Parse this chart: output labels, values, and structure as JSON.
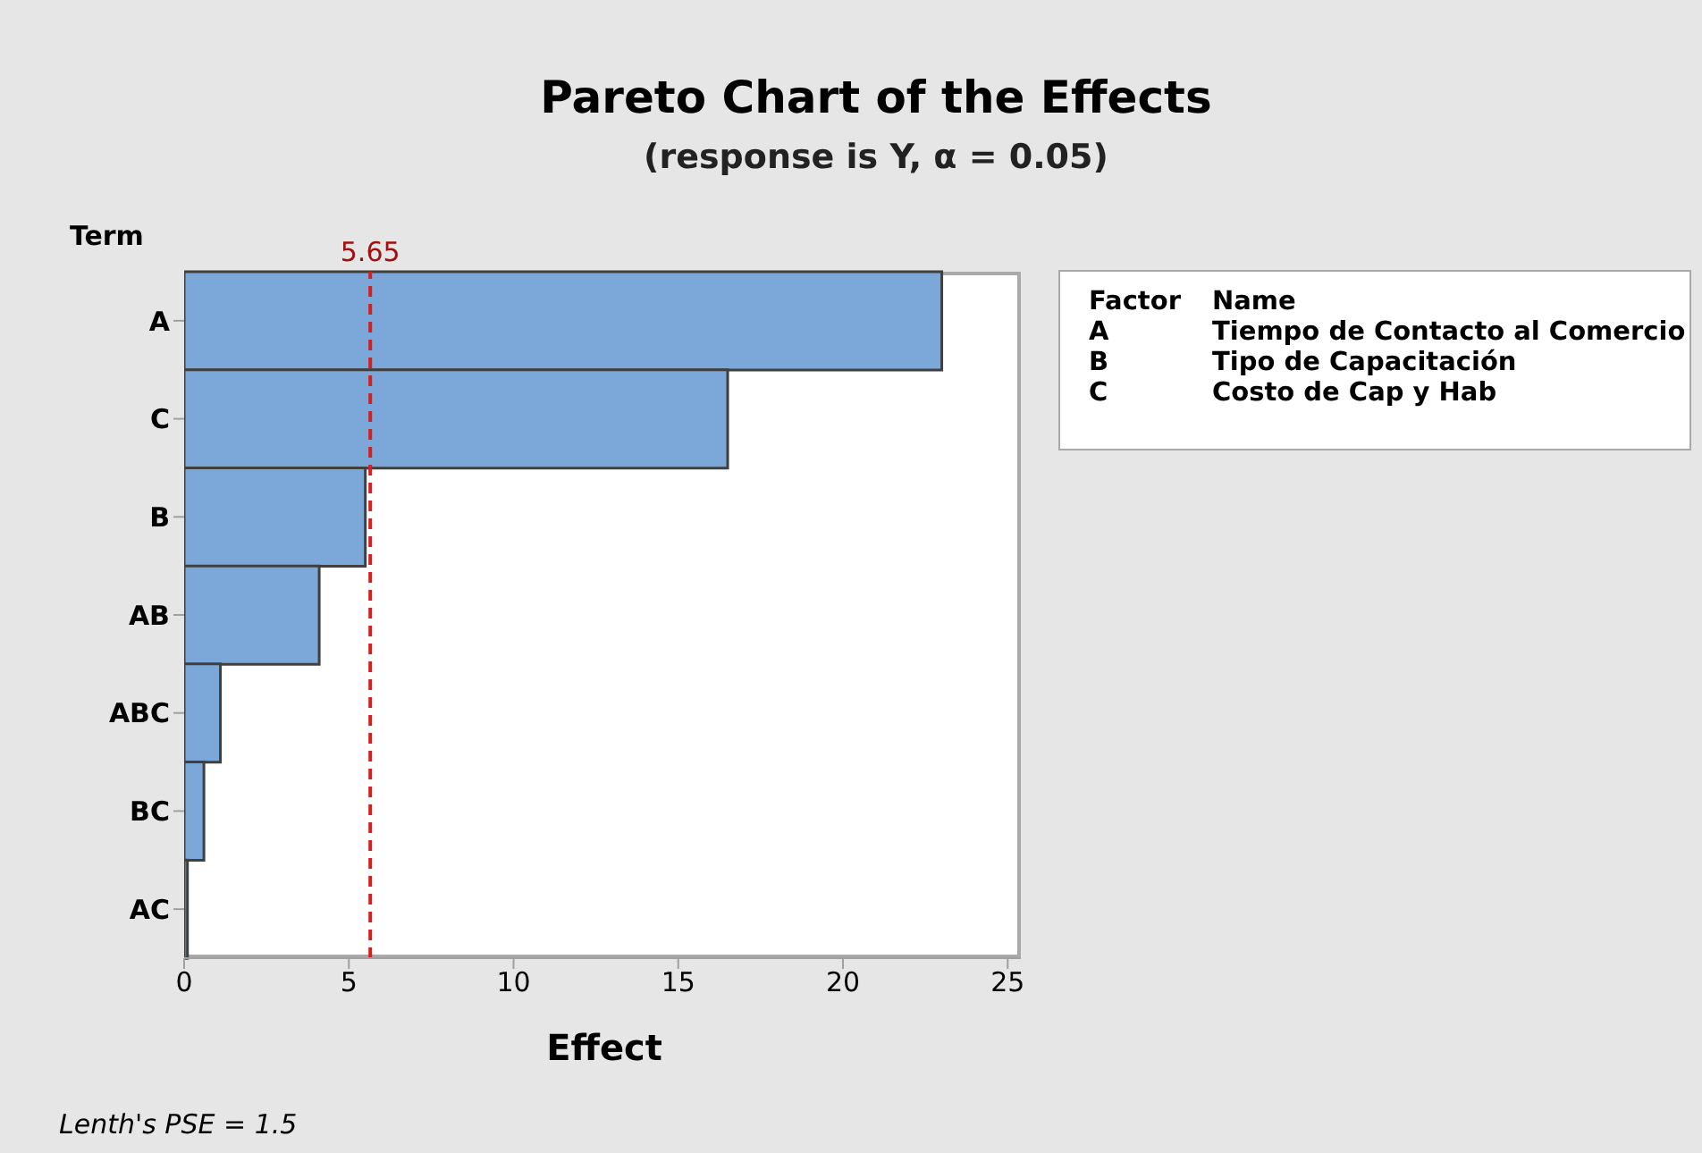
{
  "chart_data": {
    "type": "bar",
    "orientation": "horizontal",
    "title": "Pareto Chart of the Effects",
    "subtitle": "(response is Y, α = 0.05)",
    "xlabel": "Effect",
    "ylabel": "Term",
    "categories": [
      "A",
      "C",
      "B",
      "AB",
      "ABC",
      "BC",
      "AC"
    ],
    "values": [
      23.0,
      16.5,
      5.5,
      4.1,
      1.1,
      0.6,
      0.1
    ],
    "color": "#7ba7d9",
    "xlim": [
      0,
      25.4
    ],
    "xticks": [
      0,
      5,
      10,
      15,
      20,
      25
    ],
    "ref_lines": [
      {
        "axis": "x",
        "value": 5.65,
        "label": "5.65",
        "color": "#d62020",
        "line_style": "dashed"
      }
    ],
    "annotations": [
      "Factor",
      "Name",
      "A",
      "Tiempo de Contacto al Comercio",
      "B",
      "Tipo de Capacitación",
      "C",
      "Costo de Cap y Hab",
      "Lenth's PSE = 1.5"
    ]
  }
}
